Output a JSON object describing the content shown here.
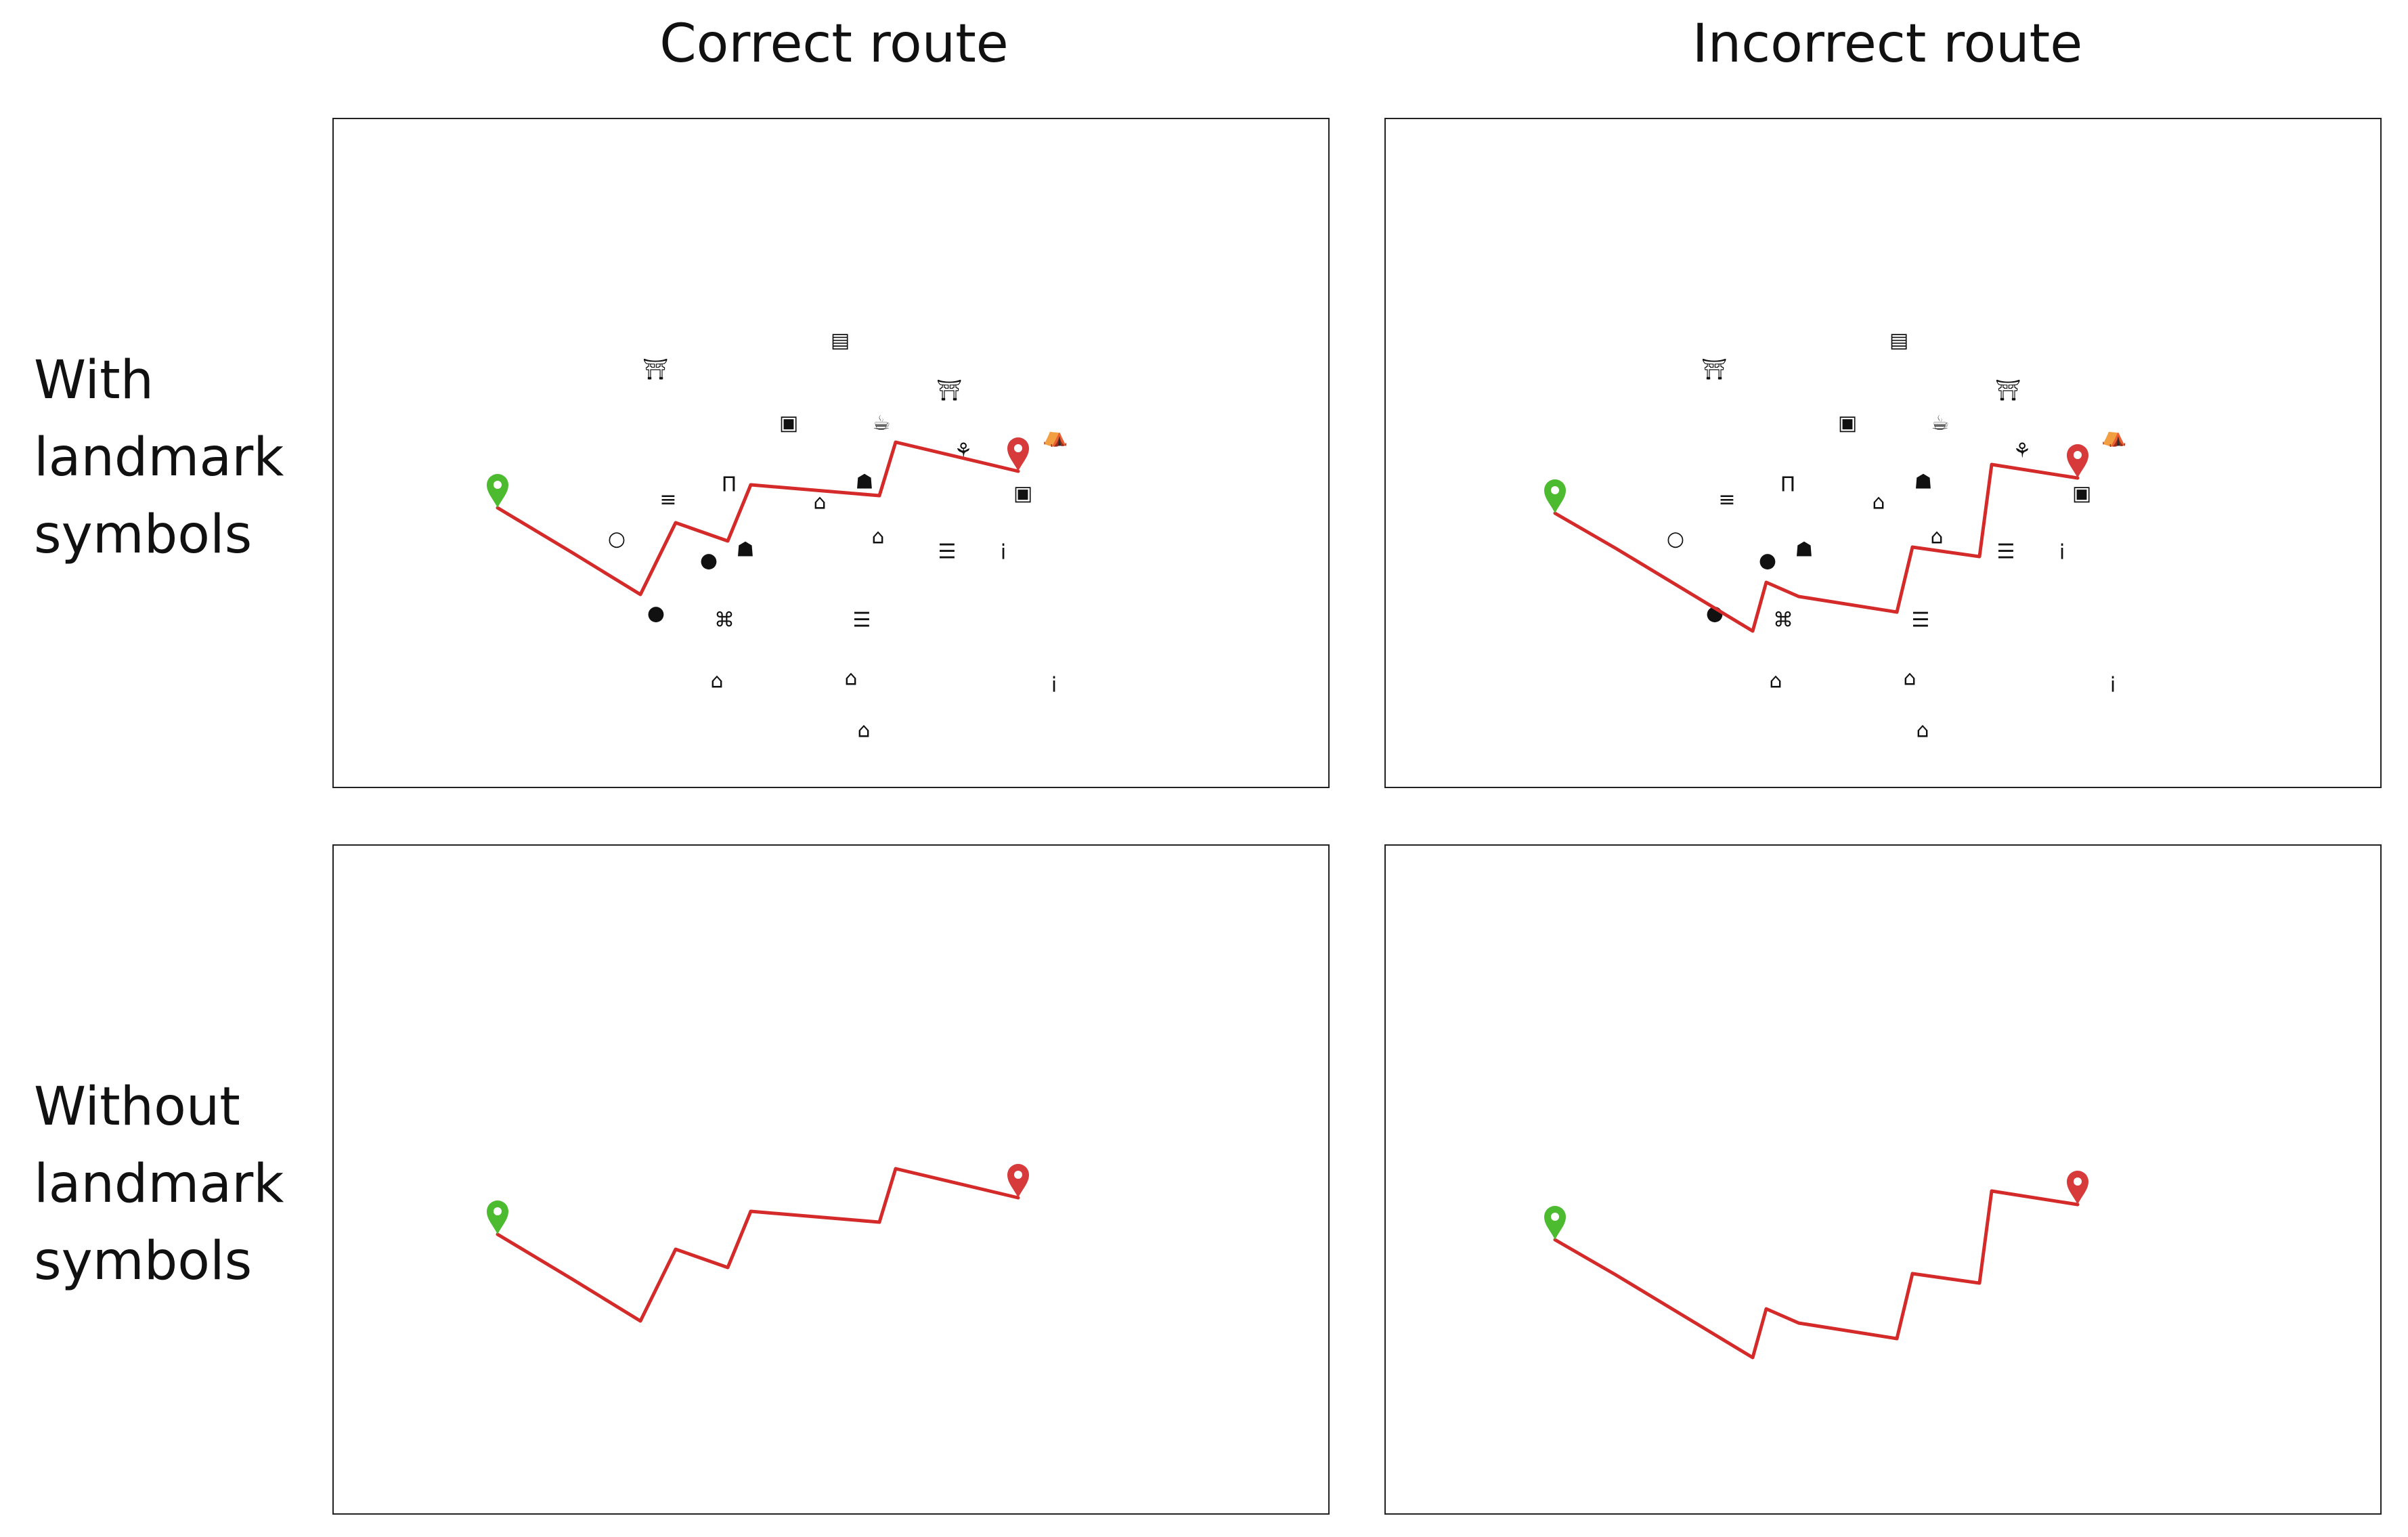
{
  "columns": {
    "left": "Correct route",
    "right": "Incorrect route"
  },
  "rows": {
    "top": [
      "With",
      "landmark",
      "symbols"
    ],
    "bottom": [
      "Without",
      "landmark",
      "symbols"
    ]
  },
  "colors": {
    "route": "#d42a2a",
    "start_marker": "#4cbb2f",
    "end_marker": "#d63a3a",
    "landmark": "#111111"
  },
  "markers": {
    "start": "start-pin-icon",
    "end": "end-pin-icon"
  },
  "landmark_icons": [
    "billboard-icon",
    "torii-icon",
    "shop-icon",
    "cafe-icon",
    "torii-icon",
    "watering-can-icon",
    "tent-icon",
    "sofa-icon",
    "gate-icon",
    "beer-mug-icon",
    "cart-icon",
    "shop-icon",
    "ring-icon",
    "apple-icon",
    "beer-mug-icon",
    "museum-icon",
    "paperclip-icon",
    "info-icon",
    "apple-icon",
    "gift-icon",
    "paperclip-icon",
    "cart-icon",
    "museum-icon",
    "info-icon",
    "cart-icon"
  ]
}
